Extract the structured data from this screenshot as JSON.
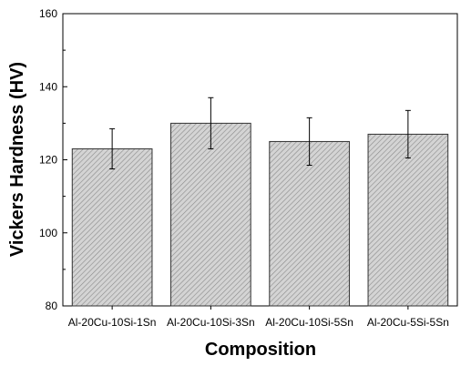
{
  "chart_data": {
    "type": "bar",
    "title": "",
    "xlabel": "Composition",
    "ylabel": "Vickers Hardness (HV)",
    "categories": [
      "Al-20Cu-10Si-1Sn",
      "Al-20Cu-10Si-3Sn",
      "Al-20Cu-10Si-5Sn",
      "Al-20Cu-5Si-5Sn"
    ],
    "values": [
      123,
      130,
      125,
      127
    ],
    "error_lower": [
      117.5,
      123,
      118.5,
      120.5
    ],
    "error_upper": [
      128.5,
      137,
      131.5,
      133.5
    ],
    "ylim": [
      80,
      160
    ],
    "yticks": [
      80,
      100,
      120,
      140,
      160
    ],
    "yticks_minor": [
      90,
      110,
      130,
      150
    ],
    "grid": false,
    "legend": "none",
    "bar_fill": "#d4d4d4",
    "bar_hatch_color": "#8a8a8a",
    "bar_edge": "#333333",
    "errorbar_color": "#000000"
  }
}
